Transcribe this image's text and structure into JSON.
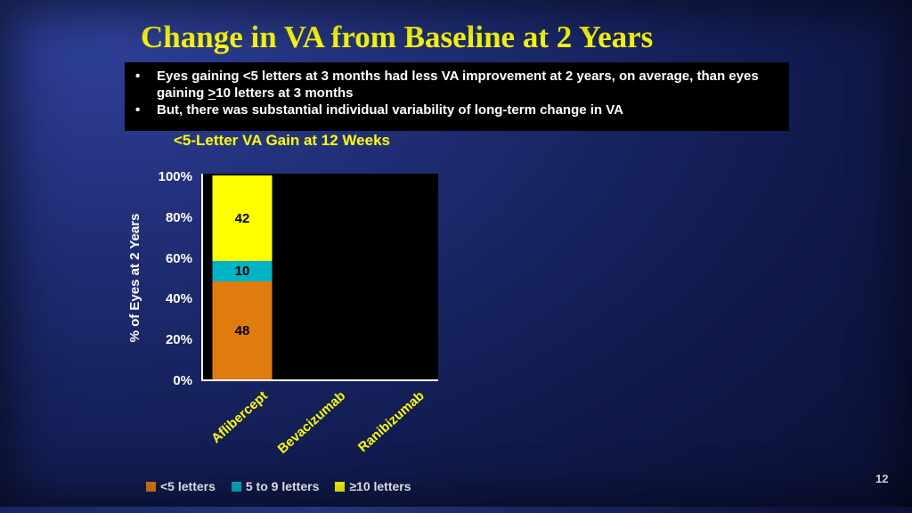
{
  "slide": {
    "title": "Change in VA from Baseline at 2 Years",
    "bullets": [
      {
        "pre": "Eyes gaining <5 letters at 3 months had less VA improvement at 2 years, on average, than eyes gaining ",
        "underline": ">",
        "post": "10 letters at 3 months"
      },
      {
        "pre": "But, there was substantial individual variability of long-term change in VA",
        "underline": "",
        "post": ""
      }
    ],
    "page_number": "12"
  },
  "chart_data": {
    "type": "bar",
    "stacked": true,
    "title": "<5-Letter VA Gain at 12 Weeks",
    "categories": [
      "Aflibercept",
      "Bevacizumab",
      "Ranibizumab"
    ],
    "series": [
      {
        "name": "<5 letters",
        "color": "#e07b10",
        "values": [
          48,
          null,
          null
        ]
      },
      {
        "name": "5 to 9 letters",
        "color": "#00b4c5",
        "values": [
          10,
          null,
          null
        ]
      },
      {
        "name": "≥10 letters",
        "color": "#ffff00",
        "values": [
          42,
          null,
          null
        ]
      }
    ],
    "ylabel": "% of Eyes at 2 Years",
    "ylim": [
      0,
      100
    ],
    "yticks": [
      0,
      20,
      40,
      60,
      80,
      100
    ],
    "ytick_format": "percent",
    "plot_bg": "#000000",
    "legend_position": "bottom",
    "grid": false
  }
}
